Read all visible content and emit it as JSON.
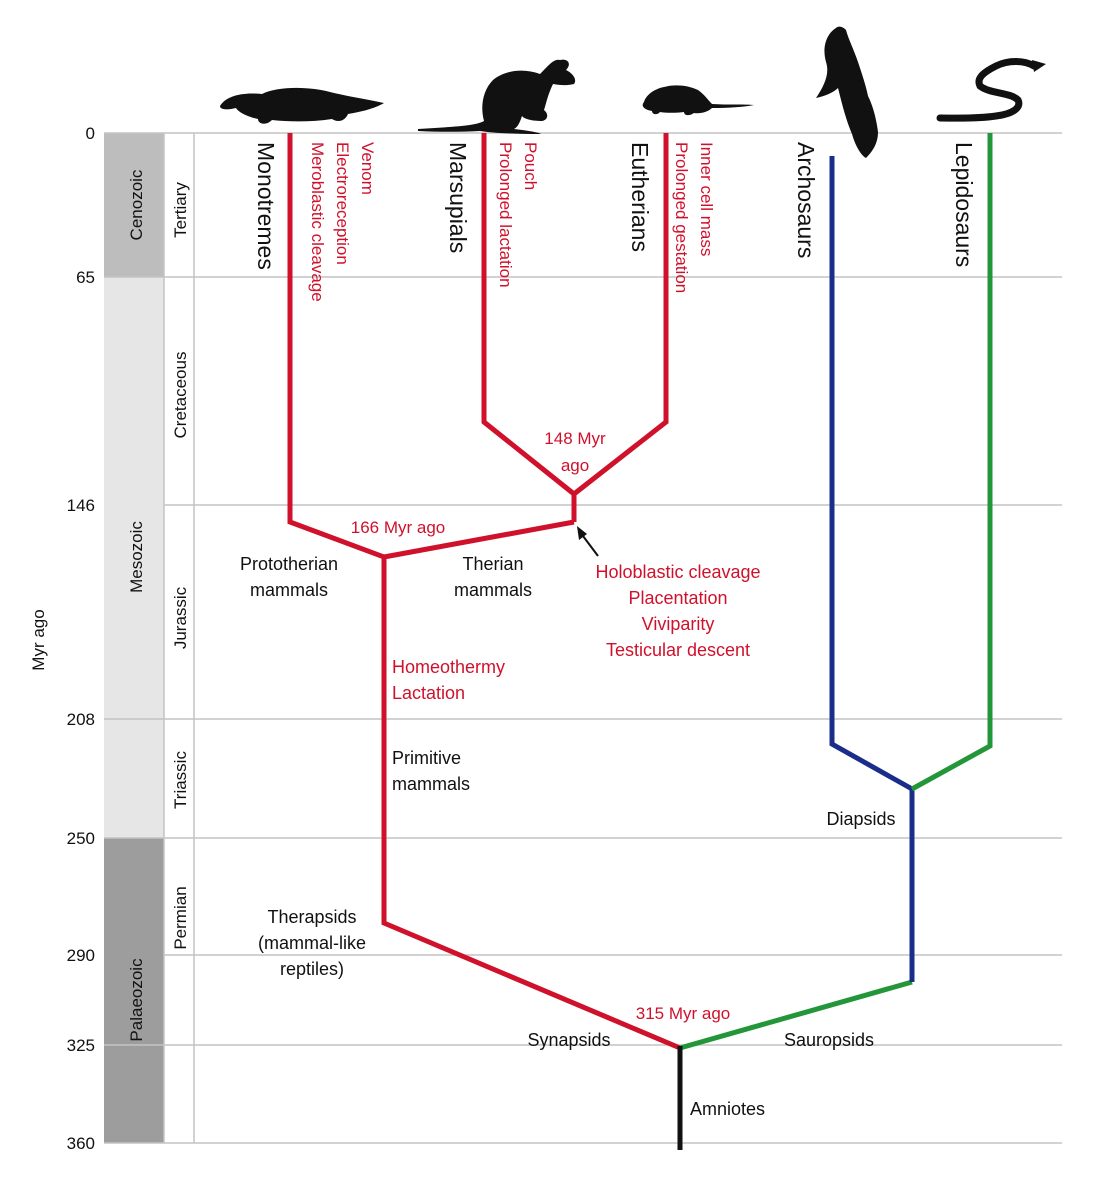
{
  "axis": {
    "label": "Myr ago",
    "ticks": [
      "0",
      "65",
      "146",
      "208",
      "250",
      "290",
      "325",
      "360"
    ]
  },
  "eras": [
    {
      "name": "Cenozoic",
      "color": "#bdbdbd"
    },
    {
      "name": "Mesozoic",
      "color": "#e6e6e6"
    },
    {
      "name": "Palaeozoic",
      "color": "#9d9d9d"
    }
  ],
  "periods": [
    "Tertiary",
    "Cretaceous",
    "Jurassic",
    "Triassic",
    "Permian"
  ],
  "taxa": {
    "monotremes": "Monotremes",
    "marsupials": "Marsupials",
    "eutherians": "Eutherians",
    "archosaurs": "Archosaurs",
    "lepidosaurs": "Lepidosaurs"
  },
  "traits": {
    "monotremes": [
      "Venom",
      "Electroreception",
      "Meroblastic cleavage"
    ],
    "marsupials": [
      "Pouch",
      "Prolonged lactation"
    ],
    "eutherians": [
      "Inner cell mass",
      "Prolonged gestation"
    ],
    "therian_node": [
      "Holoblastic cleavage",
      "Placentation",
      "Viviparity",
      "Testicular descent"
    ],
    "mammal_stem": [
      "Homeothermy",
      "Lactation"
    ]
  },
  "divergences": {
    "marsupial_eutherian": [
      "148 Myr",
      "ago"
    ],
    "prototherian_therian": "166 Myr ago",
    "synapsid_sauropsid": "315 Myr ago"
  },
  "clades": {
    "prototherian": [
      "Prototherian",
      "mammals"
    ],
    "therian": [
      "Therian",
      "mammals"
    ],
    "primitive": [
      "Primitive",
      "mammals"
    ],
    "therapsids": [
      "Therapsids",
      "(mammal-like",
      "reptiles)"
    ],
    "synapsids": "Synapsids",
    "sauropsids": "Sauropsids",
    "diapsids": "Diapsids",
    "amniotes": "Amniotes"
  },
  "colors": {
    "mammal": "#d0112b",
    "archosaur": "#1b2d8a",
    "lepidosaur": "#23963a",
    "root": "#111111",
    "grid": "#c4c4c4"
  },
  "icons": [
    "platypus-icon",
    "kangaroo-icon",
    "mouse-icon",
    "bird-icon",
    "snake-icon"
  ]
}
